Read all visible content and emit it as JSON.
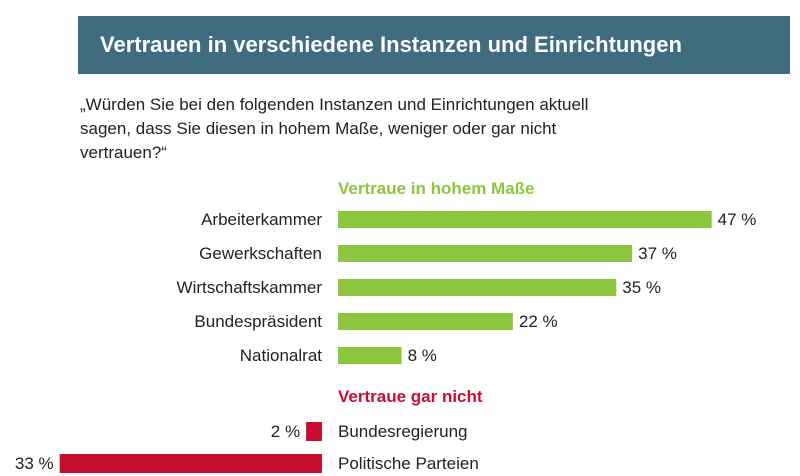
{
  "header": {
    "title": "Vertrauen in verschiedene Instanzen und Einrichtungen"
  },
  "question": "„Würden Sie bei den folgenden Instanzen und Einrichtungen aktuell sagen, dass Sie diesen in hohem Maße, weniger oder gar nicht vertrauen?“",
  "colors": {
    "header_bg": "#3f6c7f",
    "positive": "#8cc63f",
    "negative": "#c8102e",
    "text": "#222222"
  },
  "chart_data": {
    "type": "bar",
    "unit": "%",
    "groups": [
      {
        "name": "Vertraue in hohem Maße",
        "categories": [
          "Arbeiterkammer",
          "Gewerkschaften",
          "Wirtschaftskammer",
          "Bundespräsident",
          "Nationalrat"
        ],
        "values": [
          47,
          37,
          35,
          22,
          8
        ]
      },
      {
        "name": "Vertraue gar nicht",
        "categories": [
          "Bundesregierung",
          "Politische Parteien"
        ],
        "values": [
          2,
          33
        ]
      }
    ]
  }
}
